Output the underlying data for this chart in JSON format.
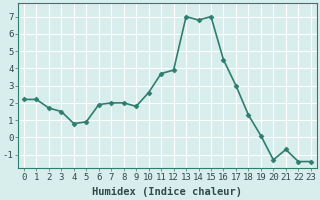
{
  "x": [
    0,
    1,
    2,
    3,
    4,
    5,
    6,
    7,
    8,
    9,
    10,
    11,
    12,
    13,
    14,
    15,
    16,
    17,
    18,
    19,
    20,
    21,
    22,
    23
  ],
  "y": [
    2.2,
    2.2,
    1.7,
    1.5,
    0.8,
    0.9,
    1.9,
    2.0,
    2.0,
    1.8,
    2.6,
    3.7,
    3.9,
    7.0,
    6.8,
    7.0,
    4.5,
    3.0,
    1.3,
    0.1,
    -1.3,
    -0.7,
    -1.4,
    -1.4
  ],
  "line_color": "#2e7d6e",
  "marker": "D",
  "marker_size": 2.5,
  "xlabel": "Humidex (Indice chaleur)",
  "ylim": [
    -1.8,
    7.8
  ],
  "xlim": [
    -0.5,
    23.5
  ],
  "yticks": [
    -1,
    0,
    1,
    2,
    3,
    4,
    5,
    6,
    7
  ],
  "xticks": [
    0,
    1,
    2,
    3,
    4,
    5,
    6,
    7,
    8,
    9,
    10,
    11,
    12,
    13,
    14,
    15,
    16,
    17,
    18,
    19,
    20,
    21,
    22,
    23
  ],
  "background_color": "#d8eeec",
  "grid_color": "#ffffff",
  "tick_fontsize": 6.5,
  "xlabel_fontsize": 7.5,
  "line_width": 1.2,
  "font_family": "monospace"
}
